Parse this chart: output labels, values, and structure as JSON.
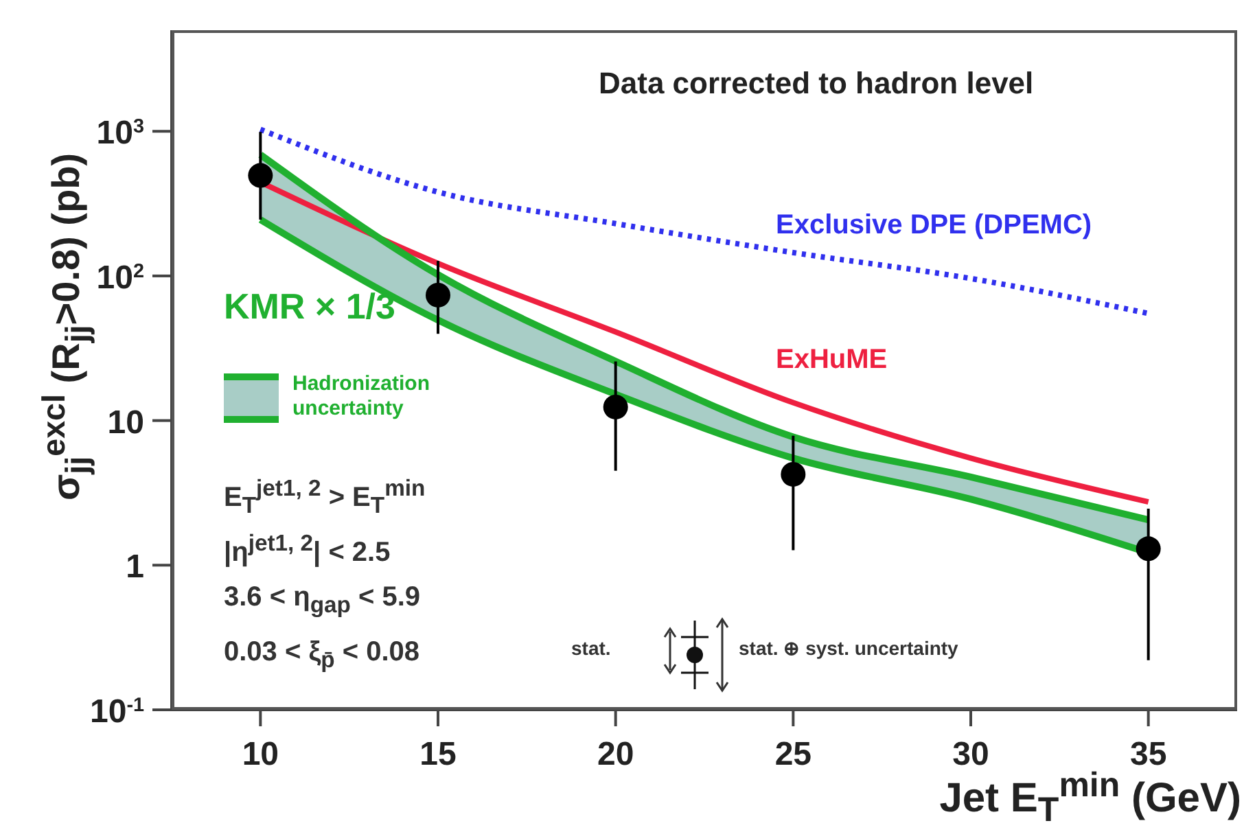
{
  "chart_data": {
    "type": "line",
    "xlabel": "Jet E$_{T}$$^{min}$ (GeV)",
    "ylabel": "σ$_{jj}$$^{excl}$ (R$_{jj}$>0.8) (pb)",
    "log": "y",
    "xlim": [
      7.5,
      37.5
    ],
    "xticks": [
      10,
      15,
      20,
      25,
      30,
      35
    ],
    "ylim": [
      0.1,
      5000
    ],
    "yticks": [
      {
        "value": 0.1,
        "label": "10$^{-1}$"
      },
      1,
      10,
      {
        "value": 100,
        "label": "10$^{2}$"
      },
      {
        "value": 1000,
        "label": "10$^{3}$"
      }
    ],
    "legend": false,
    "x": [
      10,
      15,
      20,
      25,
      30,
      35
    ],
    "series": [
      {
        "name": "Exclusive DPE (DPEMC)",
        "color": "#3030ee",
        "line_style": "dotted",
        "values": [
          1030,
          380,
          230,
          145,
          96,
          55
        ]
      },
      {
        "name": "ExHuME",
        "color": "#ee2040",
        "line_style": "solid",
        "values": [
          445,
          122,
          41,
          13.3,
          5.5,
          2.74
        ]
      },
      {
        "name": "KMR × 1/3",
        "color": "#20b030",
        "line_style": "solid",
        "values": [
          689,
          102,
          25.7,
          7.7,
          4.07,
          2.06
        ],
        "lower": [
          245,
          49.5,
          15.2,
          5.5,
          2.86,
          1.22
        ],
        "upper": [
          689,
          102,
          25.7,
          7.7,
          4.07,
          2.06
        ]
      },
      {
        "color": "#20b030",
        "line_style": "solid",
        "values": [
          245,
          49.5,
          15.2,
          5.5,
          2.86,
          1.22
        ]
      },
      {
        "type": "scatter",
        "color": "#000000",
        "marker": "circle",
        "x": [
          10,
          15,
          20,
          25,
          35
        ],
        "values": [
          495,
          73.6,
          12.4,
          4.25,
          1.3
        ],
        "errors": [
          [
            245,
            990
          ],
          [
            39.8,
            127
          ],
          [
            4.5,
            25.6
          ],
          [
            1.27,
            7.85
          ],
          [
            0.22,
            2.46
          ]
        ]
      }
    ],
    "annotations": [
      "Data corrected to hadron level",
      "Hadronization uncertainty",
      "E$_{T}$$^{jet1, 2}$ > E$_{T}$$^{min}$",
      "|η$^{jet1, 2}$| < 2.5",
      "3.6 < η$_{gap}$ < 5.9",
      "0.03 < ξ$_{p̄}$ < 0.08",
      "stat.",
      "stat. ⊕ syst. uncertainty"
    ]
  }
}
